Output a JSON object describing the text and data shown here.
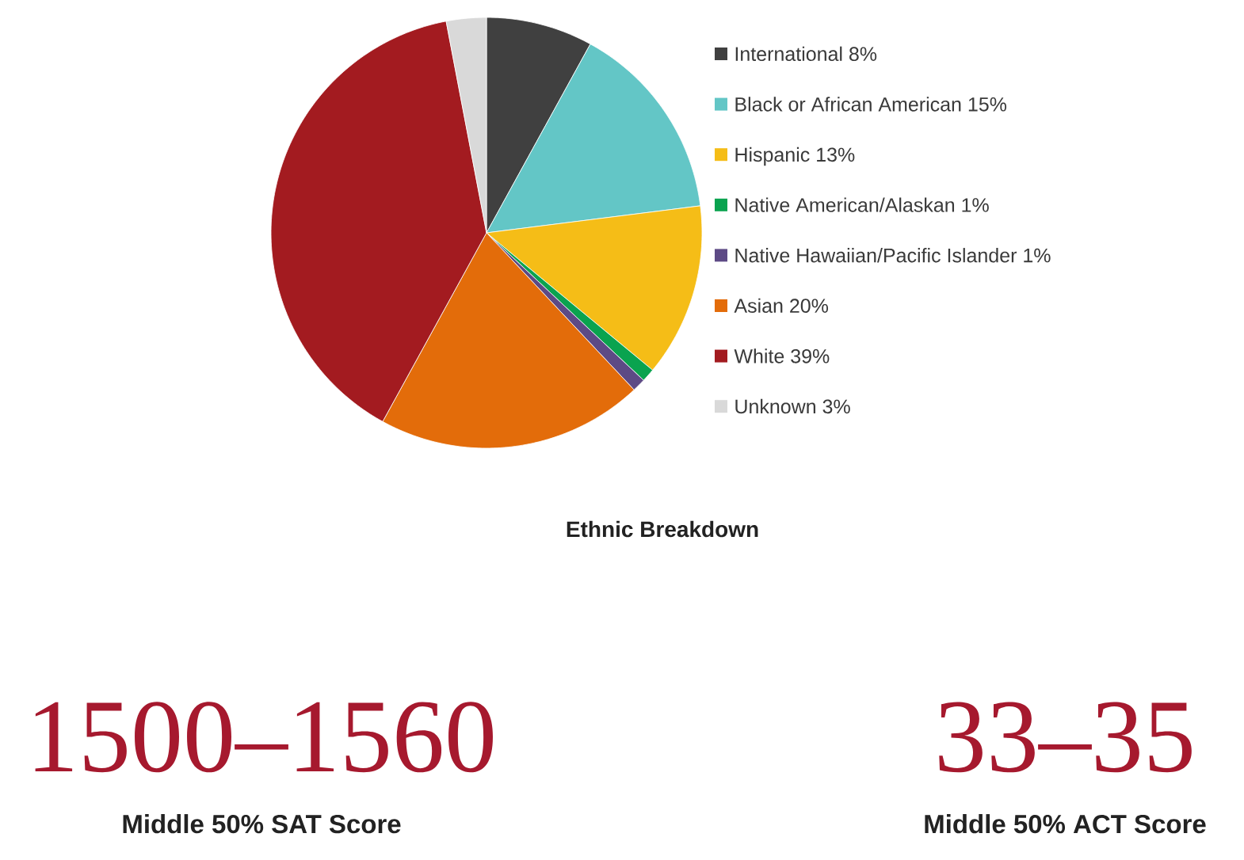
{
  "chart_data": [
    {
      "type": "pie",
      "title": "Ethnic Breakdown",
      "categories": [
        "International 8%",
        "Black or African American 15%",
        "Hispanic 13%",
        "Native American/Alaskan 1%",
        "Native Hawaiian/Pacific Islander 1%",
        "Asian 20%",
        "White 39%",
        "Unknown 3%"
      ],
      "values": [
        8,
        15,
        13,
        1,
        1,
        20,
        39,
        3
      ],
      "colors": [
        "#404040",
        "#63c6c6",
        "#f5bd17",
        "#0aa34f",
        "#5d4a85",
        "#e36c0a",
        "#a31b20",
        "#d9d9d9"
      ],
      "legend": "right"
    },
    {
      "type": "other",
      "title": "1500–1560",
      "subtitle": "Middle 50% SAT Score"
    },
    {
      "type": "other",
      "title": "33–35",
      "subtitle": "Middle 50% ACT Score"
    }
  ]
}
